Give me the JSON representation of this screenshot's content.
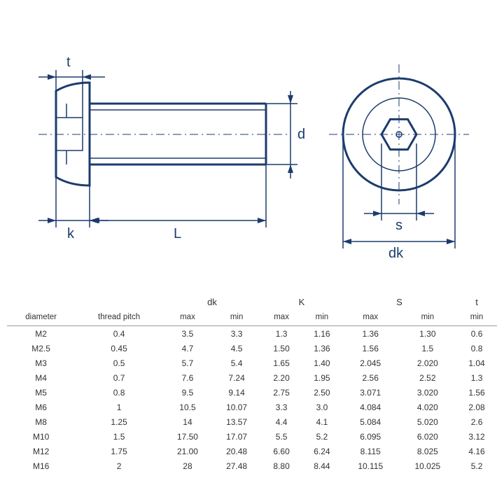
{
  "diagram": {
    "stroke_color": "#1c3b6e",
    "label_fontsize": 20,
    "labels": {
      "t": "t",
      "d": "d",
      "k": "k",
      "L": "L",
      "s": "s",
      "dk": "dk"
    }
  },
  "table": {
    "group_headers": [
      "",
      "",
      "dk",
      "K",
      "S",
      "t"
    ],
    "sub_headers": [
      "diameter",
      "thread pitch",
      "max",
      "min",
      "max",
      "min",
      "max",
      "min",
      "min"
    ],
    "rows": [
      [
        "M2",
        "0.4",
        "3.5",
        "3.3",
        "1.3",
        "1.16",
        "1.36",
        "1.30",
        "0.6"
      ],
      [
        "M2.5",
        "0.45",
        "4.7",
        "4.5",
        "1.50",
        "1.36",
        "1.56",
        "1.5",
        "0.8"
      ],
      [
        "M3",
        "0.5",
        "5.7",
        "5.4",
        "1.65",
        "1.40",
        "2.045",
        "2.020",
        "1.04"
      ],
      [
        "M4",
        "0.7",
        "7.6",
        "7.24",
        "2.20",
        "1.95",
        "2.56",
        "2.52",
        "1.3"
      ],
      [
        "M5",
        "0.8",
        "9.5",
        "9.14",
        "2.75",
        "2.50",
        "3.071",
        "3.020",
        "1.56"
      ],
      [
        "M6",
        "1",
        "10.5",
        "10.07",
        "3.3",
        "3.0",
        "4.084",
        "4.020",
        "2.08"
      ],
      [
        "M8",
        "1.25",
        "14",
        "13.57",
        "4.4",
        "4.1",
        "5.084",
        "5.020",
        "2.6"
      ],
      [
        "M10",
        "1.5",
        "17.50",
        "17.07",
        "5.5",
        "5.2",
        "6.095",
        "6.020",
        "3.12"
      ],
      [
        "M12",
        "1.75",
        "21.00",
        "20.48",
        "6.60",
        "6.24",
        "8.115",
        "8.025",
        "4.16"
      ],
      [
        "M16",
        "2",
        "28",
        "27.48",
        "8.80",
        "8.44",
        "10.115",
        "10.025",
        "5.2"
      ]
    ],
    "colspans": [
      1,
      1,
      2,
      2,
      2,
      1
    ]
  }
}
